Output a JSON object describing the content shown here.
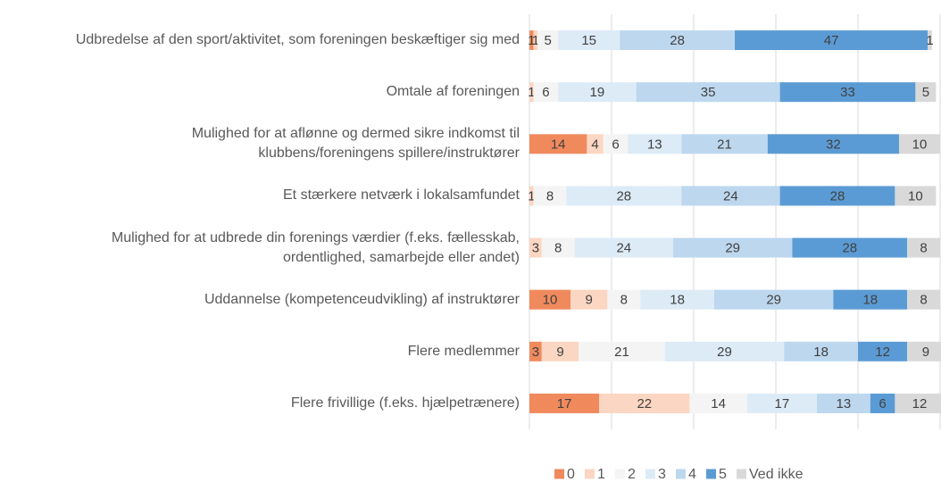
{
  "chart_data": {
    "type": "stacked_barh",
    "categories": [
      "Udbredelse af den sport/aktivitet, som foreningen beskæftiger sig med",
      "Omtale af foreningen",
      "Mulighed for at aflønne og dermed sikre indkomst til klubbens/foreningens spillere/instruktører",
      "Et stærkere netværk i lokalsamfundet",
      "Mulighed for at udbrede din forenings værdier (f.eks. fællesskab, ordentlighed, samarbejde eller andet)",
      "Uddannelse (kompetenceudvikling) af instruktører",
      "Flere medlemmer",
      "Flere frivillige (f.eks. hjælpetrænere)"
    ],
    "series": [
      {
        "name": "0",
        "color": "#f08a5d",
        "values": [
          1,
          null,
          14,
          null,
          null,
          10,
          3,
          17
        ]
      },
      {
        "name": "1",
        "color": "#fbd6c2",
        "values": [
          1,
          1,
          4,
          1,
          3,
          9,
          9,
          22
        ]
      },
      {
        "name": "2",
        "color": "#f4f4f4",
        "values": [
          5,
          6,
          6,
          8,
          8,
          8,
          21,
          14
        ]
      },
      {
        "name": "3",
        "color": "#ddebf7",
        "values": [
          15,
          19,
          13,
          28,
          24,
          18,
          29,
          17
        ]
      },
      {
        "name": "4",
        "color": "#bdd7ee",
        "values": [
          28,
          35,
          21,
          24,
          29,
          29,
          18,
          13
        ]
      },
      {
        "name": "5",
        "color": "#5b9bd5",
        "values": [
          47,
          33,
          32,
          28,
          28,
          18,
          12,
          6
        ]
      },
      {
        "name": "Ved ikke",
        "color": "#d9d9d9",
        "values": [
          1,
          5,
          10,
          10,
          8,
          8,
          9,
          12
        ]
      }
    ],
    "xlim": [
      0,
      100
    ],
    "xticks": [
      0,
      20,
      40,
      60,
      80,
      100
    ],
    "grid": true,
    "legend": "bottom"
  }
}
